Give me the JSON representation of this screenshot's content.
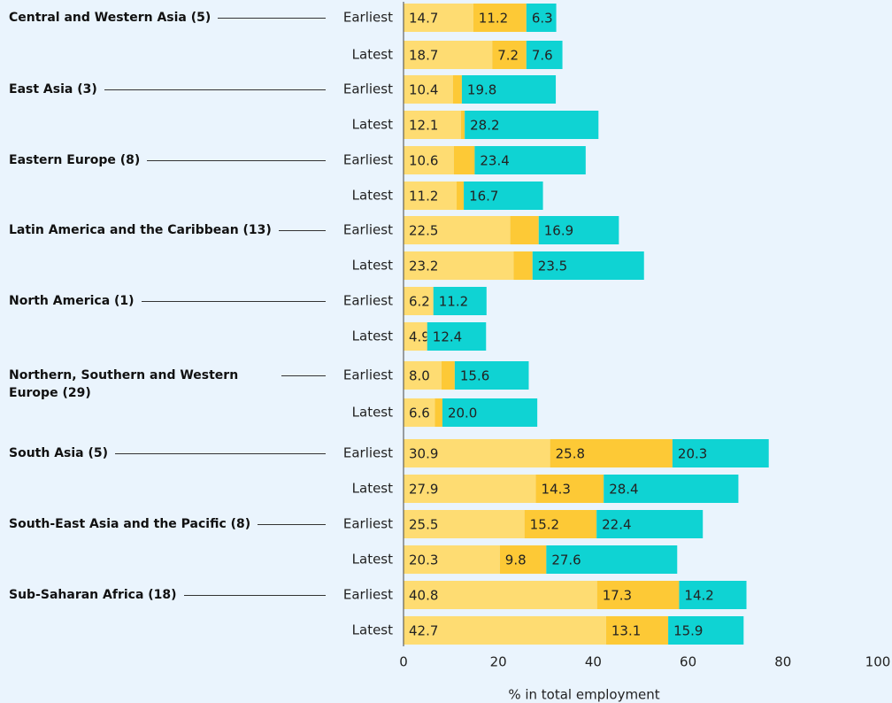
{
  "chart_data": {
    "type": "stacked-bar-horizontal",
    "xlabel": "% in total employment",
    "groups": [
      "Central and Western Asia (5)",
      "East Asia (3)",
      "Eastern Europe (8)",
      "Latin America and the Caribbean (13)",
      "North America (1)",
      "Northern, Southern and Western Europe (29)",
      "South Asia (5)",
      "South-East Asia and the Pacific (8)",
      "Sub-Saharan Africa (18)"
    ],
    "categories": [
      "Earliest",
      "Latest",
      "Earliest",
      "Latest",
      "Earliest",
      "Latest",
      "Earliest",
      "Latest",
      "Earliest",
      "Latest",
      "Earliest",
      "Latest",
      "Earliest",
      "Latest",
      "Earliest",
      "Latest",
      "Earliest",
      "Latest"
    ],
    "series": [
      {
        "color": "#fedc72",
        "values": [
          14.7,
          18.7,
          10.4,
          12.1,
          10.6,
          11.2,
          22.5,
          23.2,
          6.2,
          4.9,
          8.0,
          6.6,
          30.9,
          27.9,
          25.5,
          20.3,
          40.8,
          42.7
        ],
        "value_labels": [
          "14.7",
          "18.7",
          "10.4",
          "12.1",
          "10.6",
          "11.2",
          "22.5",
          "23.2",
          "6.2",
          "4.9",
          "8.0",
          "6.6",
          "30.9",
          "27.9",
          "25.5",
          "20.3",
          "40.8",
          "42.7"
        ]
      },
      {
        "color": "#fdc936",
        "values": [
          11.2,
          7.2,
          1.9,
          0.8,
          4.4,
          1.5,
          6.0,
          4.0,
          0.1,
          0.1,
          2.8,
          1.6,
          25.8,
          14.3,
          15.2,
          9.8,
          17.3,
          13.1
        ],
        "value_labels": [
          "11.2",
          "7.2",
          null,
          null,
          null,
          null,
          null,
          null,
          null,
          null,
          null,
          null,
          "25.8",
          "14.3",
          "15.2",
          "9.8",
          "17.3",
          "13.1"
        ]
      },
      {
        "color": "#0fd3d3",
        "values": [
          6.3,
          7.6,
          19.8,
          28.2,
          23.4,
          16.7,
          16.9,
          23.5,
          11.2,
          12.4,
          15.6,
          20.0,
          20.3,
          28.4,
          22.4,
          27.6,
          14.2,
          15.9
        ],
        "value_labels": [
          "6.3",
          "7.6",
          "19.8",
          "28.2",
          "23.4",
          "16.7",
          "16.9",
          "23.5",
          "11.2",
          "12.4",
          "15.6",
          "20.0",
          "20.3",
          "28.4",
          "22.4",
          "27.6",
          "14.2",
          "15.9"
        ]
      }
    ],
    "xlim": [
      0,
      100
    ],
    "xticks": [
      0,
      20,
      40,
      60,
      80,
      100
    ]
  }
}
